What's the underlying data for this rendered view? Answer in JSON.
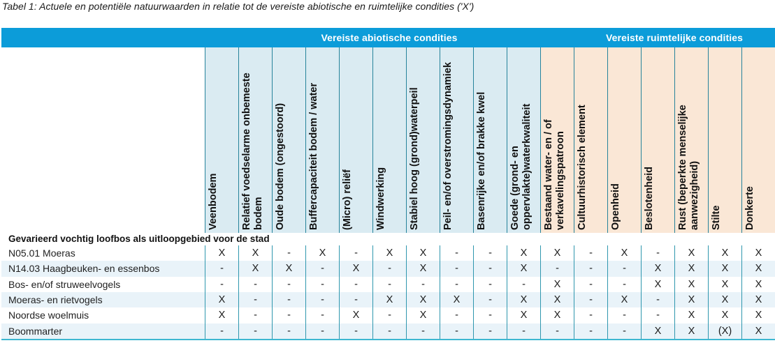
{
  "title": "Tabel 1: Actuele en potentiële natuurwaarden in relatie tot de vereiste abiotische en ruimtelijke condities ('X')",
  "groups": [
    {
      "label": "Vereiste abiotische condities",
      "span": 10
    },
    {
      "label": "Vereiste ruimtelijke condities",
      "span": 7
    }
  ],
  "columns": [
    {
      "group": "abiotisch",
      "lines": [
        "Veenbodem"
      ]
    },
    {
      "group": "abiotisch",
      "lines": [
        "Relatief voedselarme onbemeste",
        "bodem"
      ]
    },
    {
      "group": "abiotisch",
      "lines": [
        "Oude bodem (ongestoord)"
      ]
    },
    {
      "group": "abiotisch",
      "lines": [
        "Buffercapaciteit bodem / water"
      ]
    },
    {
      "group": "abiotisch",
      "lines": [
        "(Micro) reliëf"
      ]
    },
    {
      "group": "abiotisch",
      "lines": [
        "Windwerking"
      ]
    },
    {
      "group": "abiotisch",
      "lines": [
        "Stabiel hoog (grond)waterpeil"
      ]
    },
    {
      "group": "abiotisch",
      "lines": [
        "Peil- en/of overstromingsdynamiek"
      ]
    },
    {
      "group": "abiotisch",
      "lines": [
        "Basenrijke en/of brakke kwel"
      ]
    },
    {
      "group": "abiotisch",
      "lines": [
        "Goede (grond- en",
        "oppervlakte)waterkwaliteit"
      ]
    },
    {
      "group": "ruimtelijk",
      "lines": [
        "Bestaand water- en / of",
        "verkavelingspatroon"
      ]
    },
    {
      "group": "ruimtelijk",
      "lines": [
        "Cultuurhistorisch element"
      ]
    },
    {
      "group": "ruimtelijk",
      "lines": [
        "Openheid"
      ]
    },
    {
      "group": "ruimtelijk",
      "lines": [
        "Beslotenheid"
      ]
    },
    {
      "group": "ruimtelijk",
      "lines": [
        "Rust (beperkte menselijke",
        "aanwezigheid)"
      ]
    },
    {
      "group": "ruimtelijk",
      "lines": [
        "Stilte"
      ]
    },
    {
      "group": "ruimtelijk",
      "lines": [
        "Donkerte"
      ]
    }
  ],
  "section_header": "Gevarieerd vochtig loofbos als uitloopgebied voor de stad",
  "rows": [
    {
      "label": "N05.01 Moeras",
      "values": [
        "X",
        "X",
        "-",
        "X",
        "-",
        "X",
        "X",
        "-",
        "-",
        "X",
        "X",
        "-",
        "X",
        "-",
        "X",
        "X",
        "X"
      ]
    },
    {
      "label": "N14.03 Haagbeuken- en essenbos",
      "values": [
        "-",
        "X",
        "X",
        "-",
        "X",
        "-",
        "X",
        "-",
        "-",
        "X",
        "-",
        "-",
        "-",
        "X",
        "X",
        "X",
        "X"
      ]
    },
    {
      "label": "Bos- en/of struweelvogels",
      "values": [
        "-",
        "-",
        "-",
        "-",
        "-",
        "-",
        "-",
        "-",
        "-",
        "-",
        "X",
        "-",
        "-",
        "X",
        "X",
        "X",
        "X"
      ]
    },
    {
      "label": "Moeras- en rietvogels",
      "values": [
        "X",
        "-",
        "-",
        "-",
        "-",
        "X",
        "X",
        "X",
        "-",
        "X",
        "X",
        "-",
        "X",
        "-",
        "X",
        "X",
        "X"
      ]
    },
    {
      "label": "Noordse woelmuis",
      "values": [
        "X",
        "-",
        "-",
        "-",
        "X",
        "-",
        "X",
        "-",
        "-",
        "X",
        "X",
        "-",
        "-",
        "-",
        "X",
        "X",
        "X"
      ]
    },
    {
      "label": "Boommarter",
      "values": [
        "-",
        "-",
        "-",
        "-",
        "-",
        "-",
        "-",
        "-",
        "-",
        "-",
        "-",
        "-",
        "-",
        "X",
        "X",
        "(X)",
        "X"
      ]
    }
  ],
  "colors": {
    "band_blue": "#0C9CD9",
    "abiotisch_fill": "#DAEBF2",
    "ruimtelijk_fill": "#FAE7D6",
    "header_line": "#26839B",
    "body_line": "#2F97AE",
    "zebra_fill": "#EBF4F9",
    "bottom_border": "#3DB7D1"
  }
}
